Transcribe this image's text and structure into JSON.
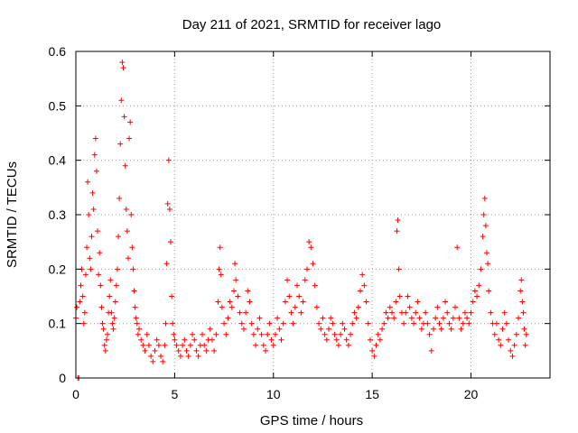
{
  "chart_data": {
    "type": "scatter",
    "title": "Day 211 of 2021, SRMTID for receiver lago",
    "xlabel": "GPS time / hours",
    "ylabel": "SRMTID / TECUs",
    "xlim": [
      0,
      24
    ],
    "ylim": [
      0,
      0.6
    ],
    "x_ticks": [
      0,
      5,
      10,
      15,
      20
    ],
    "y_ticks": [
      0,
      0.1,
      0.2,
      0.3,
      0.4,
      0.5,
      0.6
    ],
    "x_tick_labels": [
      "0",
      "5",
      "10",
      "15",
      "20"
    ],
    "y_tick_labels": [
      "0",
      "0.1",
      "0.2",
      "0.3",
      "0.4",
      "0.5",
      "0.6"
    ],
    "grid": true,
    "marker": "+",
    "series_color": "#ff0000",
    "series": [
      {
        "name": "SRMTID",
        "points": [
          [
            0.0,
            0.11
          ],
          [
            0.05,
            0.13
          ],
          [
            0.1,
            0.0
          ],
          [
            0.15,
            0.0
          ],
          [
            0.2,
            0.14
          ],
          [
            0.25,
            0.17
          ],
          [
            0.3,
            0.2
          ],
          [
            0.35,
            0.15
          ],
          [
            0.4,
            0.1
          ],
          [
            0.45,
            0.12
          ],
          [
            0.5,
            0.19
          ],
          [
            0.55,
            0.24
          ],
          [
            0.6,
            0.36
          ],
          [
            0.65,
            0.3
          ],
          [
            0.7,
            0.22
          ],
          [
            0.75,
            0.2
          ],
          [
            0.8,
            0.26
          ],
          [
            0.85,
            0.34
          ],
          [
            0.9,
            0.31
          ],
          [
            0.95,
            0.41
          ],
          [
            1.0,
            0.44
          ],
          [
            1.05,
            0.38
          ],
          [
            1.1,
            0.27
          ],
          [
            1.15,
            0.19
          ],
          [
            1.2,
            0.23
          ],
          [
            1.25,
            0.17
          ],
          [
            1.3,
            0.13
          ],
          [
            1.35,
            0.1
          ],
          [
            1.4,
            0.09
          ],
          [
            1.45,
            0.06
          ],
          [
            1.5,
            0.05
          ],
          [
            1.55,
            0.07
          ],
          [
            1.6,
            0.08
          ],
          [
            1.65,
            0.12
          ],
          [
            1.7,
            0.15
          ],
          [
            1.75,
            0.18
          ],
          [
            1.8,
            0.12
          ],
          [
            1.85,
            0.1
          ],
          [
            1.9,
            0.09
          ],
          [
            1.95,
            0.11
          ],
          [
            2.0,
            0.14
          ],
          [
            2.05,
            0.17
          ],
          [
            2.1,
            0.2
          ],
          [
            2.15,
            0.26
          ],
          [
            2.2,
            0.33
          ],
          [
            2.25,
            0.43
          ],
          [
            2.3,
            0.51
          ],
          [
            2.35,
            0.58
          ],
          [
            2.4,
            0.57
          ],
          [
            2.45,
            0.48
          ],
          [
            2.5,
            0.39
          ],
          [
            2.55,
            0.31
          ],
          [
            2.6,
            0.27
          ],
          [
            2.65,
            0.22
          ],
          [
            2.7,
            0.44
          ],
          [
            2.75,
            0.47
          ],
          [
            2.8,
            0.3
          ],
          [
            2.85,
            0.24
          ],
          [
            2.9,
            0.2
          ],
          [
            2.95,
            0.16
          ],
          [
            3.0,
            0.13
          ],
          [
            3.05,
            0.11
          ],
          [
            3.1,
            0.1
          ],
          [
            3.15,
            0.08
          ],
          [
            3.2,
            0.09
          ],
          [
            3.3,
            0.07
          ],
          [
            3.4,
            0.06
          ],
          [
            3.5,
            0.05
          ],
          [
            3.6,
            0.08
          ],
          [
            3.7,
            0.06
          ],
          [
            3.8,
            0.04
          ],
          [
            3.9,
            0.03
          ],
          [
            4.0,
            0.05
          ],
          [
            4.1,
            0.07
          ],
          [
            4.2,
            0.06
          ],
          [
            4.3,
            0.04
          ],
          [
            4.4,
            0.03
          ],
          [
            4.5,
            0.06
          ],
          [
            4.55,
            0.1
          ],
          [
            4.6,
            0.21
          ],
          [
            4.65,
            0.32
          ],
          [
            4.7,
            0.4
          ],
          [
            4.75,
            0.31
          ],
          [
            4.8,
            0.25
          ],
          [
            4.85,
            0.15
          ],
          [
            4.9,
            0.1
          ],
          [
            4.95,
            0.08
          ],
          [
            5.0,
            0.07
          ],
          [
            5.1,
            0.06
          ],
          [
            5.2,
            0.05
          ],
          [
            5.3,
            0.04
          ],
          [
            5.4,
            0.06
          ],
          [
            5.5,
            0.07
          ],
          [
            5.6,
            0.05
          ],
          [
            5.7,
            0.04
          ],
          [
            5.8,
            0.06
          ],
          [
            5.9,
            0.08
          ],
          [
            6.0,
            0.07
          ],
          [
            6.1,
            0.05
          ],
          [
            6.2,
            0.04
          ],
          [
            6.3,
            0.06
          ],
          [
            6.4,
            0.08
          ],
          [
            6.5,
            0.06
          ],
          [
            6.6,
            0.05
          ],
          [
            6.7,
            0.07
          ],
          [
            6.8,
            0.09
          ],
          [
            6.9,
            0.07
          ],
          [
            7.0,
            0.05
          ],
          [
            7.1,
            0.08
          ],
          [
            7.2,
            0.14
          ],
          [
            7.25,
            0.2
          ],
          [
            7.3,
            0.24
          ],
          [
            7.35,
            0.19
          ],
          [
            7.4,
            0.13
          ],
          [
            7.5,
            0.1
          ],
          [
            7.6,
            0.08
          ],
          [
            7.7,
            0.11
          ],
          [
            7.8,
            0.14
          ],
          [
            7.9,
            0.13
          ],
          [
            8.0,
            0.16
          ],
          [
            8.05,
            0.21
          ],
          [
            8.1,
            0.18
          ],
          [
            8.2,
            0.15
          ],
          [
            8.3,
            0.12
          ],
          [
            8.4,
            0.1
          ],
          [
            8.5,
            0.09
          ],
          [
            8.6,
            0.12
          ],
          [
            8.7,
            0.16
          ],
          [
            8.8,
            0.14
          ],
          [
            8.9,
            0.1
          ],
          [
            9.0,
            0.08
          ],
          [
            9.1,
            0.06
          ],
          [
            9.2,
            0.09
          ],
          [
            9.3,
            0.11
          ],
          [
            9.4,
            0.08
          ],
          [
            9.5,
            0.06
          ],
          [
            9.6,
            0.05
          ],
          [
            9.7,
            0.08
          ],
          [
            9.8,
            0.1
          ],
          [
            9.9,
            0.07
          ],
          [
            10.0,
            0.06
          ],
          [
            10.1,
            0.08
          ],
          [
            10.2,
            0.11
          ],
          [
            10.3,
            0.09
          ],
          [
            10.4,
            0.07
          ],
          [
            10.5,
            0.1
          ],
          [
            10.6,
            0.14
          ],
          [
            10.7,
            0.18
          ],
          [
            10.8,
            0.15
          ],
          [
            10.9,
            0.12
          ],
          [
            11.0,
            0.1
          ],
          [
            11.1,
            0.13
          ],
          [
            11.2,
            0.17
          ],
          [
            11.3,
            0.15
          ],
          [
            11.4,
            0.12
          ],
          [
            11.5,
            0.14
          ],
          [
            11.6,
            0.18
          ],
          [
            11.7,
            0.2
          ],
          [
            11.8,
            0.25
          ],
          [
            11.9,
            0.24
          ],
          [
            12.0,
            0.21
          ],
          [
            12.1,
            0.17
          ],
          [
            12.2,
            0.13
          ],
          [
            12.3,
            0.1
          ],
          [
            12.4,
            0.09
          ],
          [
            12.5,
            0.11
          ],
          [
            12.6,
            0.08
          ],
          [
            12.7,
            0.07
          ],
          [
            12.8,
            0.09
          ],
          [
            12.9,
            0.11
          ],
          [
            13.0,
            0.1
          ],
          [
            13.1,
            0.08
          ],
          [
            13.2,
            0.07
          ],
          [
            13.3,
            0.06
          ],
          [
            13.4,
            0.08
          ],
          [
            13.5,
            0.1
          ],
          [
            13.6,
            0.09
          ],
          [
            13.7,
            0.07
          ],
          [
            13.8,
            0.06
          ],
          [
            13.9,
            0.08
          ],
          [
            14.0,
            0.1
          ],
          [
            14.1,
            0.12
          ],
          [
            14.2,
            0.11
          ],
          [
            14.3,
            0.13
          ],
          [
            14.4,
            0.16
          ],
          [
            14.5,
            0.19
          ],
          [
            14.6,
            0.17
          ],
          [
            14.7,
            0.14
          ],
          [
            14.8,
            0.1
          ],
          [
            14.9,
            0.07
          ],
          [
            15.0,
            0.05
          ],
          [
            15.1,
            0.04
          ],
          [
            15.2,
            0.06
          ],
          [
            15.3,
            0.08
          ],
          [
            15.4,
            0.07
          ],
          [
            15.5,
            0.09
          ],
          [
            15.6,
            0.1
          ],
          [
            15.7,
            0.12
          ],
          [
            15.8,
            0.11
          ],
          [
            15.9,
            0.13
          ],
          [
            16.0,
            0.12
          ],
          [
            16.1,
            0.11
          ],
          [
            16.2,
            0.14
          ],
          [
            16.25,
            0.27
          ],
          [
            16.3,
            0.29
          ],
          [
            16.35,
            0.2
          ],
          [
            16.4,
            0.15
          ],
          [
            16.5,
            0.12
          ],
          [
            16.6,
            0.1
          ],
          [
            16.7,
            0.12
          ],
          [
            16.8,
            0.15
          ],
          [
            16.9,
            0.13
          ],
          [
            17.0,
            0.11
          ],
          [
            17.1,
            0.1
          ],
          [
            17.2,
            0.12
          ],
          [
            17.3,
            0.14
          ],
          [
            17.4,
            0.11
          ],
          [
            17.5,
            0.09
          ],
          [
            17.6,
            0.1
          ],
          [
            17.7,
            0.12
          ],
          [
            17.8,
            0.1
          ],
          [
            17.9,
            0.08
          ],
          [
            18.0,
            0.05
          ],
          [
            18.1,
            0.09
          ],
          [
            18.2,
            0.11
          ],
          [
            18.3,
            0.13
          ],
          [
            18.4,
            0.1
          ],
          [
            18.5,
            0.09
          ],
          [
            18.6,
            0.11
          ],
          [
            18.7,
            0.14
          ],
          [
            18.8,
            0.12
          ],
          [
            18.9,
            0.1
          ],
          [
            19.0,
            0.09
          ],
          [
            19.1,
            0.11
          ],
          [
            19.2,
            0.13
          ],
          [
            19.3,
            0.24
          ],
          [
            19.4,
            0.11
          ],
          [
            19.5,
            0.09
          ],
          [
            19.6,
            0.1
          ],
          [
            19.7,
            0.12
          ],
          [
            19.8,
            0.11
          ],
          [
            19.9,
            0.1
          ],
          [
            20.0,
            0.12
          ],
          [
            20.1,
            0.14
          ],
          [
            20.2,
            0.16
          ],
          [
            20.3,
            0.15
          ],
          [
            20.4,
            0.17
          ],
          [
            20.5,
            0.2
          ],
          [
            20.6,
            0.26
          ],
          [
            20.65,
            0.3
          ],
          [
            20.7,
            0.33
          ],
          [
            20.75,
            0.28
          ],
          [
            20.8,
            0.23
          ],
          [
            20.85,
            0.21
          ],
          [
            20.9,
            0.16
          ],
          [
            21.0,
            0.12
          ],
          [
            21.1,
            0.1
          ],
          [
            21.2,
            0.08
          ],
          [
            21.3,
            0.1
          ],
          [
            21.4,
            0.07
          ],
          [
            21.5,
            0.06
          ],
          [
            21.6,
            0.09
          ],
          [
            21.7,
            0.12
          ],
          [
            21.8,
            0.1
          ],
          [
            21.9,
            0.07
          ],
          [
            22.0,
            0.05
          ],
          [
            22.1,
            0.04
          ],
          [
            22.2,
            0.06
          ],
          [
            22.3,
            0.08
          ],
          [
            22.4,
            0.11
          ],
          [
            22.5,
            0.16
          ],
          [
            22.55,
            0.18
          ],
          [
            22.6,
            0.14
          ],
          [
            22.65,
            0.12
          ],
          [
            22.7,
            0.09
          ],
          [
            22.75,
            0.06
          ],
          [
            22.8,
            0.08
          ]
        ]
      }
    ]
  }
}
